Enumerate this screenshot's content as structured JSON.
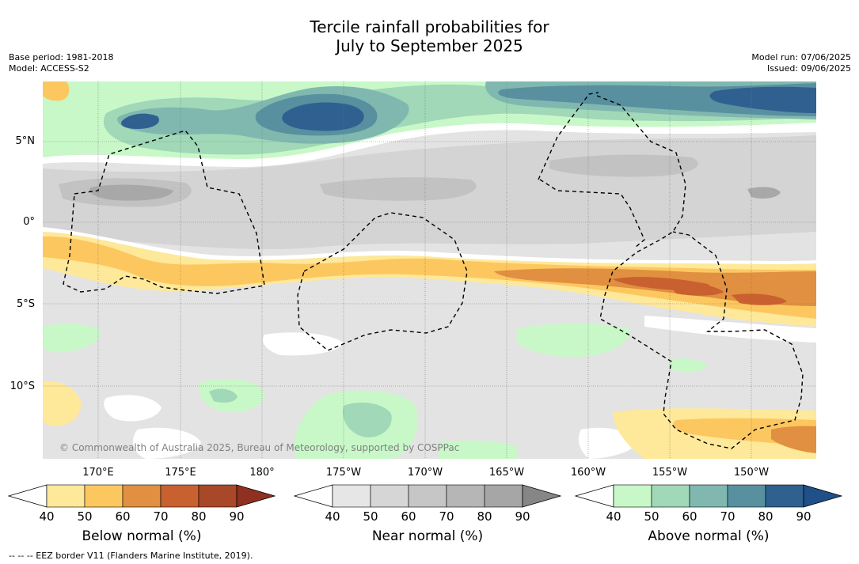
{
  "title_line1": "Tercile rainfall probabilities for",
  "title_line2": "July to September 2025",
  "base_period": "Base period: 1981-2018",
  "model": "Model: ACCESS-S2",
  "model_run": "Model run: 07/06/2025",
  "issued": "Issued: 09/06/2025",
  "copyright": "© Commonwealth of Australia 2025, Bureau of Meteorology, supported by COSPPac",
  "footnote": "--  --  -- EEZ border V11 (Flanders Marine Institute, 2019).",
  "lat_labels": [
    "5°N",
    "0°",
    "5°S",
    "10°S"
  ],
  "lon_labels": [
    "170°E",
    "175°E",
    "180°",
    "175°W",
    "170°W",
    "165°W",
    "160°W",
    "155°W",
    "150°W"
  ],
  "colorbars": [
    {
      "title": "Below normal (%)",
      "ticks": [
        "40",
        "50",
        "60",
        "70",
        "80",
        "90"
      ],
      "colors": [
        "#ffffff",
        "#fee89a",
        "#fdc760",
        "#e09040",
        "#c86030",
        "#a84828",
        "#903020"
      ]
    },
    {
      "title": "Near normal (%)",
      "ticks": [
        "40",
        "50",
        "60",
        "70",
        "80",
        "90"
      ],
      "colors": [
        "#ffffff",
        "#e6e6e6",
        "#d6d6d6",
        "#c6c6c6",
        "#b6b6b6",
        "#a6a6a6",
        "#868686"
      ]
    },
    {
      "title": "Above normal (%)",
      "ticks": [
        "40",
        "50",
        "60",
        "70",
        "80",
        "90"
      ],
      "colors": [
        "#ffffff",
        "#c8f8c8",
        "#a0d8b8",
        "#80b8b0",
        "#5890a0",
        "#306090",
        "#205088"
      ]
    }
  ]
}
